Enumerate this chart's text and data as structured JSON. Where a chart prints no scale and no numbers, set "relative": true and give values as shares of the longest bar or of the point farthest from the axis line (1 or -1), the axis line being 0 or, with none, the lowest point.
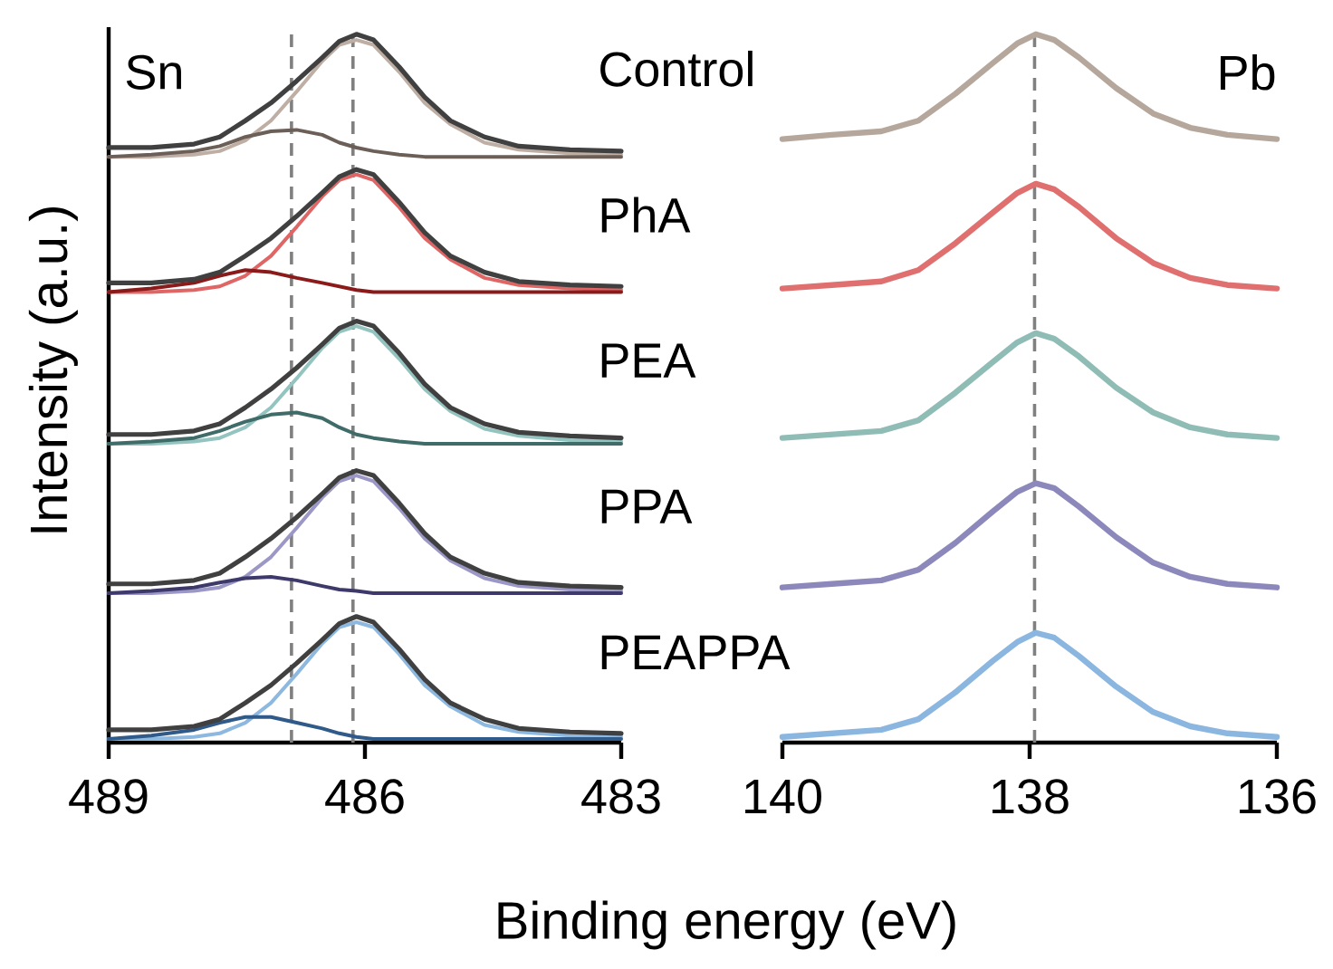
{
  "chart_data": [
    {
      "type": "line",
      "relative": true,
      "ylabel": "Intensity (a.u.)",
      "xlabel": "Binding energy (eV)",
      "xlim": [
        489,
        483
      ],
      "xticks": [
        489,
        486,
        483
      ],
      "marker": "none",
      "annotations": [
        "Sn",
        "Control",
        "PhA",
        "PEA",
        "PPA",
        "PEAPPA"
      ],
      "ref_lines": [
        {
          "axis": "x",
          "value": 486.14,
          "color": "#808080",
          "line_style": "dashed"
        },
        {
          "axis": "x",
          "value": 486.86,
          "color": "#808080",
          "line_style": "dashed"
        }
      ],
      "x": [
        489,
        488.5,
        488,
        487.7,
        487.4,
        487.1,
        486.8,
        486.5,
        486.3,
        486.1,
        485.9,
        485.6,
        485.3,
        485.0,
        484.6,
        484.2,
        483.6,
        483
      ],
      "series": [
        {
          "color": "#bfaea3",
          "values": [
            0.827,
            0.827,
            0.83,
            0.835,
            0.85,
            0.878,
            0.919,
            0.962,
            0.985,
            0.992,
            0.985,
            0.947,
            0.903,
            0.873,
            0.847,
            0.837,
            0.832,
            0.83
          ]
        },
        {
          "color": "#6b5f58",
          "values": [
            0.827,
            0.83,
            0.835,
            0.842,
            0.855,
            0.863,
            0.865,
            0.858,
            0.847,
            0.84,
            0.835,
            0.83,
            0.827,
            0.827,
            0.827,
            0.827,
            0.827,
            0.827
          ]
        },
        {
          "color": "#404040",
          "values": [
            0.84,
            0.84,
            0.845,
            0.855,
            0.878,
            0.903,
            0.934,
            0.967,
            0.99,
            1.0,
            0.992,
            0.954,
            0.911,
            0.878,
            0.855,
            0.842,
            0.837,
            0.835
          ]
        },
        {
          "color": "#e06666",
          "values": [
            0.636,
            0.636,
            0.639,
            0.644,
            0.659,
            0.687,
            0.728,
            0.771,
            0.794,
            0.802,
            0.794,
            0.756,
            0.712,
            0.682,
            0.656,
            0.646,
            0.641,
            0.639
          ]
        },
        {
          "color": "#8b1a1a",
          "values": [
            0.636,
            0.641,
            0.649,
            0.659,
            0.667,
            0.664,
            0.656,
            0.649,
            0.644,
            0.639,
            0.636,
            0.636,
            0.636,
            0.636,
            0.636,
            0.636,
            0.636,
            0.636
          ]
        },
        {
          "color": "#404040",
          "values": [
            0.649,
            0.649,
            0.654,
            0.664,
            0.687,
            0.712,
            0.743,
            0.776,
            0.799,
            0.809,
            0.802,
            0.763,
            0.72,
            0.687,
            0.664,
            0.651,
            0.646,
            0.644
          ]
        },
        {
          "color": "#94c4c0",
          "values": [
            0.422,
            0.422,
            0.425,
            0.43,
            0.445,
            0.473,
            0.514,
            0.557,
            0.58,
            0.588,
            0.58,
            0.542,
            0.499,
            0.468,
            0.443,
            0.433,
            0.427,
            0.425
          ]
        },
        {
          "color": "#3f6b68",
          "values": [
            0.422,
            0.425,
            0.43,
            0.44,
            0.453,
            0.463,
            0.466,
            0.458,
            0.445,
            0.435,
            0.43,
            0.425,
            0.422,
            0.422,
            0.422,
            0.422,
            0.422,
            0.422
          ]
        },
        {
          "color": "#404040",
          "values": [
            0.435,
            0.435,
            0.44,
            0.45,
            0.473,
            0.499,
            0.529,
            0.562,
            0.585,
            0.595,
            0.588,
            0.55,
            0.506,
            0.473,
            0.45,
            0.438,
            0.433,
            0.43
          ]
        },
        {
          "color": "#9b97c6",
          "values": [
            0.211,
            0.211,
            0.214,
            0.219,
            0.234,
            0.262,
            0.303,
            0.346,
            0.369,
            0.377,
            0.369,
            0.331,
            0.288,
            0.257,
            0.232,
            0.221,
            0.216,
            0.214
          ]
        },
        {
          "color": "#3d3a6b",
          "values": [
            0.211,
            0.214,
            0.219,
            0.226,
            0.232,
            0.234,
            0.229,
            0.221,
            0.216,
            0.214,
            0.211,
            0.211,
            0.211,
            0.211,
            0.211,
            0.211,
            0.211,
            0.211
          ]
        },
        {
          "color": "#404040",
          "values": [
            0.224,
            0.224,
            0.229,
            0.239,
            0.262,
            0.288,
            0.318,
            0.351,
            0.374,
            0.384,
            0.377,
            0.338,
            0.295,
            0.262,
            0.239,
            0.226,
            0.221,
            0.219
          ]
        },
        {
          "color": "#8db8e0",
          "values": [
            0.005,
            0.005,
            0.008,
            0.013,
            0.028,
            0.056,
            0.097,
            0.14,
            0.163,
            0.17,
            0.163,
            0.125,
            0.081,
            0.051,
            0.025,
            0.015,
            0.01,
            0.008
          ]
        },
        {
          "color": "#2f5a8a",
          "values": [
            0.005,
            0.01,
            0.018,
            0.028,
            0.036,
            0.036,
            0.028,
            0.02,
            0.013,
            0.008,
            0.005,
            0.005,
            0.005,
            0.005,
            0.005,
            0.005,
            0.005,
            0.005
          ]
        },
        {
          "color": "#404040",
          "values": [
            0.018,
            0.018,
            0.023,
            0.033,
            0.056,
            0.081,
            0.112,
            0.145,
            0.168,
            0.178,
            0.17,
            0.132,
            0.089,
            0.056,
            0.033,
            0.02,
            0.015,
            0.013
          ]
        }
      ]
    },
    {
      "type": "line",
      "relative": true,
      "xlim": [
        140,
        136
      ],
      "xticks": [
        140,
        138,
        136
      ],
      "marker": "none",
      "annotations": [
        "Pb"
      ],
      "ref_lines": [
        {
          "axis": "x",
          "value": 137.96,
          "color": "#808080",
          "line_style": "dashed"
        }
      ],
      "x": [
        140,
        139.6,
        139.2,
        138.9,
        138.6,
        138.3,
        138.1,
        137.95,
        137.8,
        137.6,
        137.3,
        137.0,
        136.7,
        136.4,
        136
      ],
      "series": [
        {
          "color": "#b5a79c",
          "values": [
            0.852,
            0.858,
            0.863,
            0.878,
            0.916,
            0.959,
            0.987,
            1.0,
            0.992,
            0.967,
            0.924,
            0.888,
            0.868,
            0.858,
            0.852
          ]
        },
        {
          "color": "#e07070",
          "values": [
            0.641,
            0.646,
            0.651,
            0.667,
            0.705,
            0.748,
            0.776,
            0.789,
            0.781,
            0.756,
            0.712,
            0.677,
            0.656,
            0.646,
            0.641
          ]
        },
        {
          "color": "#8fbdb6",
          "values": [
            0.43,
            0.435,
            0.44,
            0.455,
            0.494,
            0.537,
            0.565,
            0.578,
            0.57,
            0.545,
            0.501,
            0.466,
            0.445,
            0.435,
            0.43
          ]
        },
        {
          "color": "#8c88bb",
          "values": [
            0.219,
            0.224,
            0.229,
            0.244,
            0.282,
            0.326,
            0.354,
            0.366,
            0.359,
            0.333,
            0.29,
            0.254,
            0.234,
            0.224,
            0.219
          ]
        },
        {
          "color": "#8ab6e0",
          "values": [
            0.008,
            0.013,
            0.018,
            0.033,
            0.071,
            0.115,
            0.142,
            0.155,
            0.148,
            0.122,
            0.079,
            0.043,
            0.023,
            0.013,
            0.008
          ]
        }
      ]
    }
  ]
}
